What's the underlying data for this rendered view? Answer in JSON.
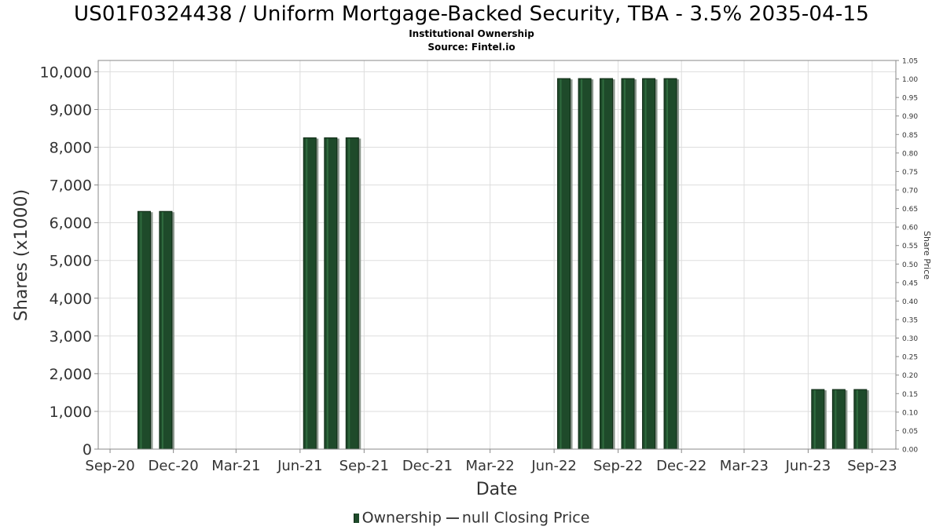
{
  "header": {
    "title": "US01F0324438 / Uniform Mortgage-Backed Security, TBA - 3.5% 2035-04-15",
    "subtitle": "Institutional Ownership",
    "source": "Source: Fintel.io"
  },
  "legend": {
    "ownership_label": "Ownership",
    "price_label": "null Closing Price"
  },
  "colors": {
    "bar": "#1e4a2a",
    "bar_dark": "#0f2a15",
    "bar_shadow": "#8a968c",
    "grid": "#dddddd"
  },
  "chart_data": {
    "type": "bar",
    "xlabel": "Date",
    "ylabel": "Shares (x1000)",
    "y2label": "Share Price",
    "ylim": [
      0,
      10300
    ],
    "y2lim": [
      0,
      1.05
    ],
    "xlim": [
      "2020-08-15",
      "2023-10-05"
    ],
    "grid": true,
    "legend_position": "bottom-center",
    "yticks": [
      0,
      1000,
      2000,
      3000,
      4000,
      5000,
      6000,
      7000,
      8000,
      9000,
      10000
    ],
    "ytick_labels": [
      "0",
      "1,000",
      "2,000",
      "3,000",
      "4,000",
      "5,000",
      "6,000",
      "7,000",
      "8,000",
      "9,000",
      "10,000"
    ],
    "y2ticks": [
      "0.00",
      "0.05",
      "0.10",
      "0.15",
      "0.20",
      "0.25",
      "0.30",
      "0.35",
      "0.40",
      "0.45",
      "0.50",
      "0.55",
      "0.60",
      "0.65",
      "0.70",
      "0.75",
      "0.80",
      "0.85",
      "0.90",
      "0.95",
      "1.00",
      "1.05"
    ],
    "xticks": [
      {
        "date": "2020-09-01",
        "label": "Sep-20"
      },
      {
        "date": "2020-12-01",
        "label": "Dec-20"
      },
      {
        "date": "2021-03-01",
        "label": "Mar-21"
      },
      {
        "date": "2021-06-01",
        "label": "Jun-21"
      },
      {
        "date": "2021-09-01",
        "label": "Sep-21"
      },
      {
        "date": "2021-12-01",
        "label": "Dec-21"
      },
      {
        "date": "2022-03-01",
        "label": "Mar-22"
      },
      {
        "date": "2022-06-01",
        "label": "Jun-22"
      },
      {
        "date": "2022-09-01",
        "label": "Sep-22"
      },
      {
        "date": "2022-12-01",
        "label": "Dec-22"
      },
      {
        "date": "2023-03-01",
        "label": "Mar-23"
      },
      {
        "date": "2023-06-01",
        "label": "Jun-23"
      },
      {
        "date": "2023-09-01",
        "label": "Sep-23"
      }
    ],
    "series": [
      {
        "name": "Ownership",
        "x": [
          "2020-10-20",
          "2020-11-20",
          "2021-06-15",
          "2021-07-15",
          "2021-08-15",
          "2022-06-15",
          "2022-07-15",
          "2022-08-15",
          "2022-09-15",
          "2022-10-15",
          "2022-11-15",
          "2023-06-15",
          "2023-07-15",
          "2023-08-15"
        ],
        "values": [
          6300,
          6300,
          8250,
          8250,
          8250,
          9820,
          9820,
          9820,
          9820,
          9820,
          9820,
          1580,
          1580,
          1580
        ]
      }
    ]
  }
}
